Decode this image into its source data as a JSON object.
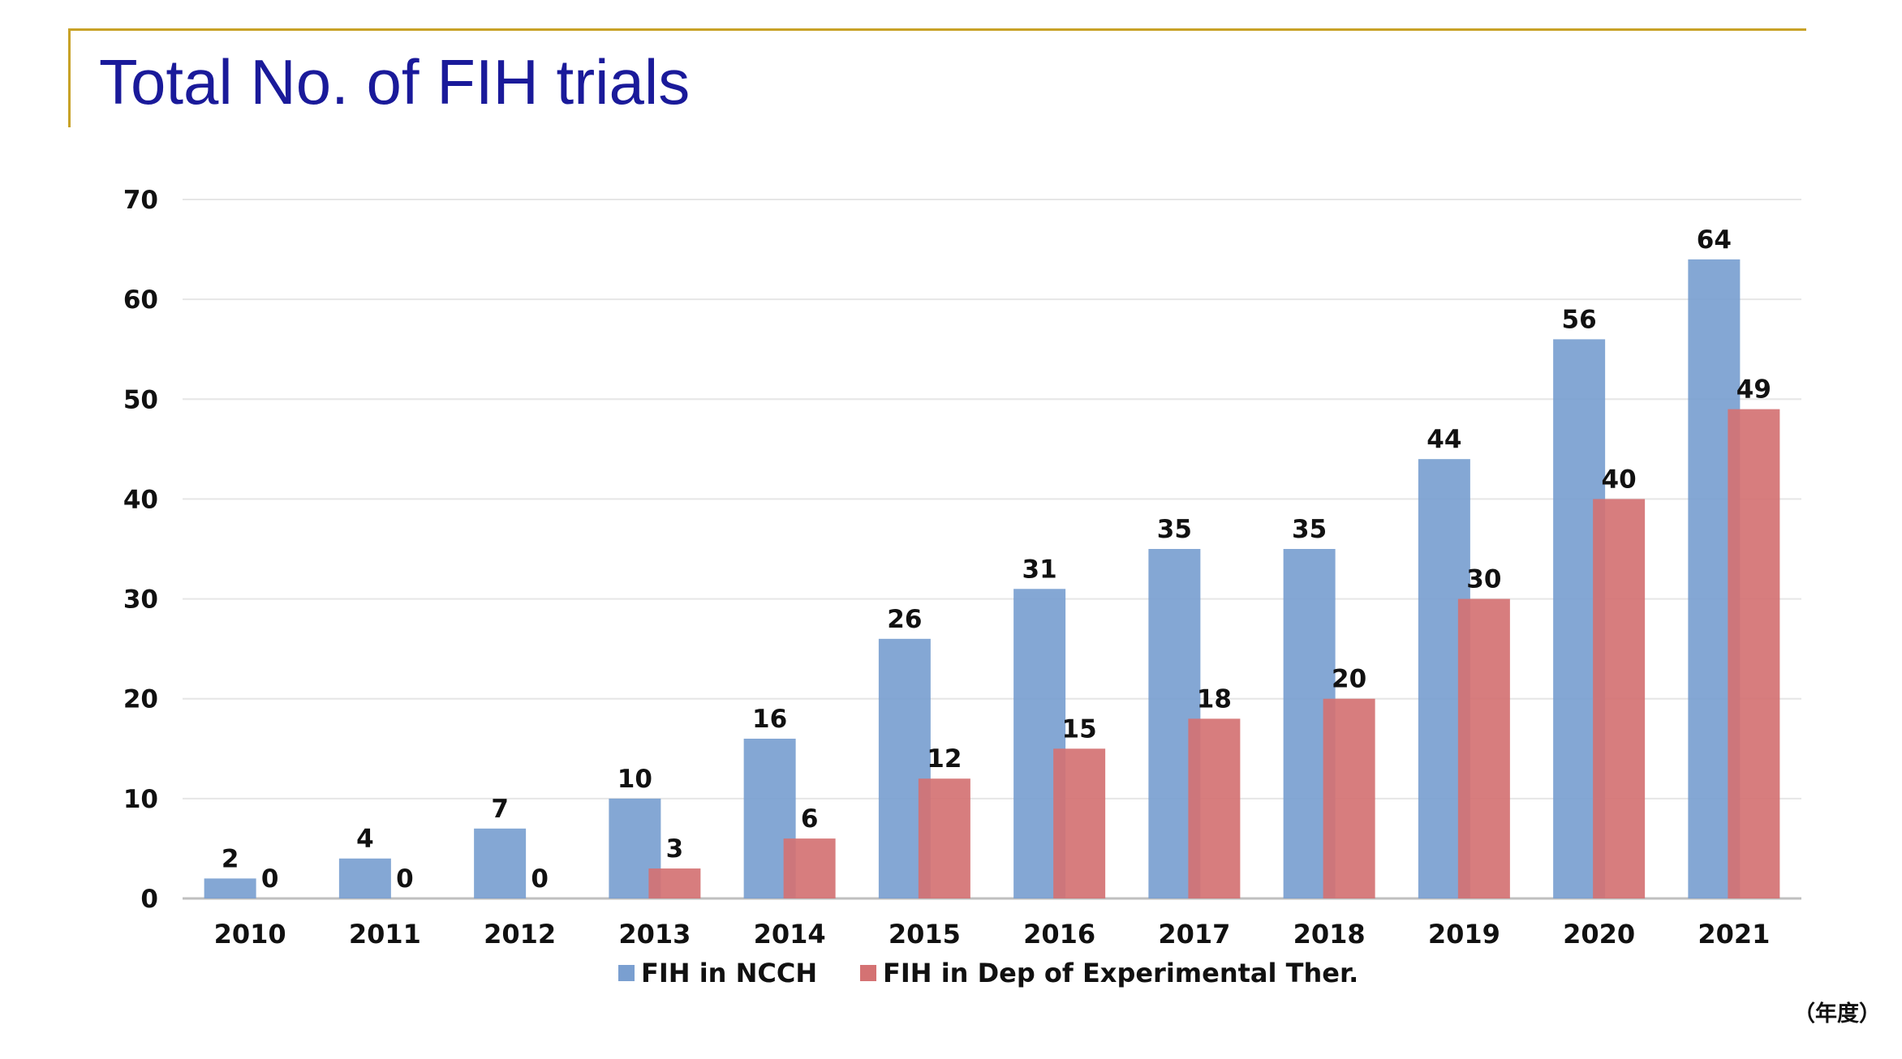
{
  "slide": {
    "title": "Total No. of FIH trials",
    "unit_note": "（年度）"
  },
  "colors": {
    "accent_rule": "#c8a227",
    "title": "#1a1a9a",
    "series_ncch": "#7a9fd0",
    "series_dep": "#d47273"
  },
  "chart_data": {
    "type": "bar",
    "title": "",
    "xlabel": "",
    "ylabel": "",
    "ylim": [
      0,
      70
    ],
    "yticks": [
      0,
      10,
      20,
      30,
      40,
      50,
      60,
      70
    ],
    "grid": true,
    "legend_position": "bottom",
    "categories": [
      "2010",
      "2011",
      "2012",
      "2013",
      "2014",
      "2015",
      "2016",
      "2017",
      "2018",
      "2019",
      "2020",
      "2021"
    ],
    "series": [
      {
        "name": "FIH in NCCH",
        "values": [
          2,
          4,
          7,
          10,
          16,
          26,
          31,
          35,
          35,
          44,
          56,
          64
        ]
      },
      {
        "name": "FIH in Dep of Experimental Ther.",
        "values": [
          0,
          0,
          0,
          3,
          6,
          12,
          15,
          18,
          20,
          30,
          40,
          49
        ]
      }
    ]
  }
}
